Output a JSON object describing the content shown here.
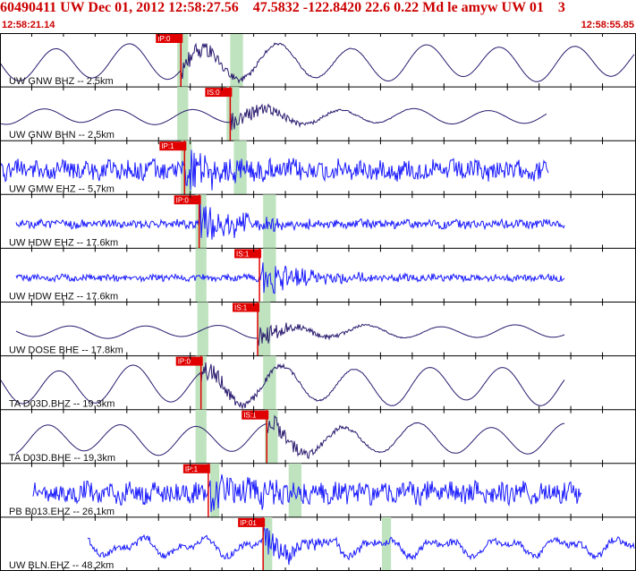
{
  "header": {
    "title": "60490411 UW Dec 01, 2012 12:58:27.56    47.5832 -122.8420 22.6 0.22 Md le amyw UW 01    3",
    "time_start": "12:58:21.14",
    "time_end": "12:58:55.85"
  },
  "colors": {
    "header_text": "#cc0000",
    "pick_marker": "#e00000",
    "pick_text": "#ffffff",
    "window_shade": "#bfe3bf",
    "horizontal_trace": "#2a1a6e",
    "vertical_trace": "#1a1aff",
    "border": "#000000"
  },
  "chart_data": {
    "type": "line",
    "x_unit": "seconds",
    "x_range": [
      0,
      34.71
    ],
    "channels": [
      {
        "label": "UW GNW BHZ -- 2.5km",
        "pick": "IP:0",
        "pick_t": 9.9,
        "windows": [
          [
            9.7,
            10.3
          ],
          [
            12.6,
            13.3
          ]
        ],
        "trace_start": 0.0,
        "trace_end": 34.7,
        "style": "lowfreq",
        "amp": 0.7
      },
      {
        "label": "UW GNW BHN -- 2.5km",
        "pick": "IS:0",
        "pick_t": 12.6,
        "windows": [
          [
            9.7,
            10.3
          ],
          [
            12.4,
            13.1
          ]
        ],
        "trace_start": 0.0,
        "trace_end": 29.9,
        "style": "lowfreq-small",
        "amp": 0.3
      },
      {
        "label": "UW GMW EHZ -- 5.7km",
        "pick": "IP:1",
        "pick_t": 10.1,
        "windows": [
          [
            9.9,
            10.5
          ],
          [
            12.8,
            13.5
          ]
        ],
        "trace_start": 0.0,
        "trace_end": 30.0,
        "style": "noise",
        "amp": 0.45
      },
      {
        "label": "UW HDW EHZ -- 17.6km",
        "pick": "IP:0",
        "pick_t": 10.9,
        "windows": [
          [
            10.7,
            11.3
          ],
          [
            14.4,
            15.1
          ]
        ],
        "trace_start": 0.9,
        "trace_end": 30.9,
        "style": "noise-small",
        "amp": 0.2
      },
      {
        "label": "UW HDW EHZ -- 17.6km",
        "pick": "IS:1",
        "pick_t": 14.2,
        "windows": [
          [
            10.7,
            11.3
          ],
          [
            14.4,
            15.1
          ]
        ],
        "trace_start": 0.9,
        "trace_end": 30.9,
        "style": "noise-small",
        "amp": 0.15
      },
      {
        "label": "UW DOSE BHE -- 17.8km",
        "pick": "IS:1",
        "pick_t": 14.1,
        "windows": [
          [
            10.8,
            11.4
          ],
          [
            14.1,
            14.8
          ]
        ],
        "trace_start": 0.9,
        "trace_end": 30.9,
        "style": "lowfreq-small",
        "amp": 0.25
      },
      {
        "label": "TA D03D.BHZ -- 19.3km",
        "pick": "IP:0",
        "pick_t": 11.0,
        "windows": [
          [
            10.7,
            11.3
          ],
          [
            14.4,
            15.1
          ]
        ],
        "trace_start": 0.0,
        "trace_end": 30.9,
        "style": "lowfreq",
        "amp": 0.75
      },
      {
        "label": "TA D03D.BHE -- 19.3km",
        "pick": "IS:1",
        "pick_t": 14.6,
        "windows": [
          [
            10.7,
            11.3
          ],
          [
            14.5,
            15.2
          ]
        ],
        "trace_start": 0.9,
        "trace_end": 30.9,
        "style": "lowfreq",
        "amp": 0.6
      },
      {
        "label": "PB B013.EHZ -- 26.1km",
        "pick": "IP:1",
        "pick_t": 11.4,
        "windows": [
          [
            11.5,
            12.0
          ],
          [
            15.8,
            16.5
          ]
        ],
        "trace_start": 1.8,
        "trace_end": 31.8,
        "style": "noise",
        "amp": 0.5
      },
      {
        "label": "UW BLN.EHZ -- 48.2km",
        "pick": "IP:01",
        "pick_t": 14.4,
        "windows": [
          [
            14.4,
            14.9
          ],
          [
            20.9,
            21.4
          ]
        ],
        "trace_start": 4.8,
        "trace_end": 34.7,
        "style": "noisy-low",
        "amp": 0.5
      }
    ]
  }
}
